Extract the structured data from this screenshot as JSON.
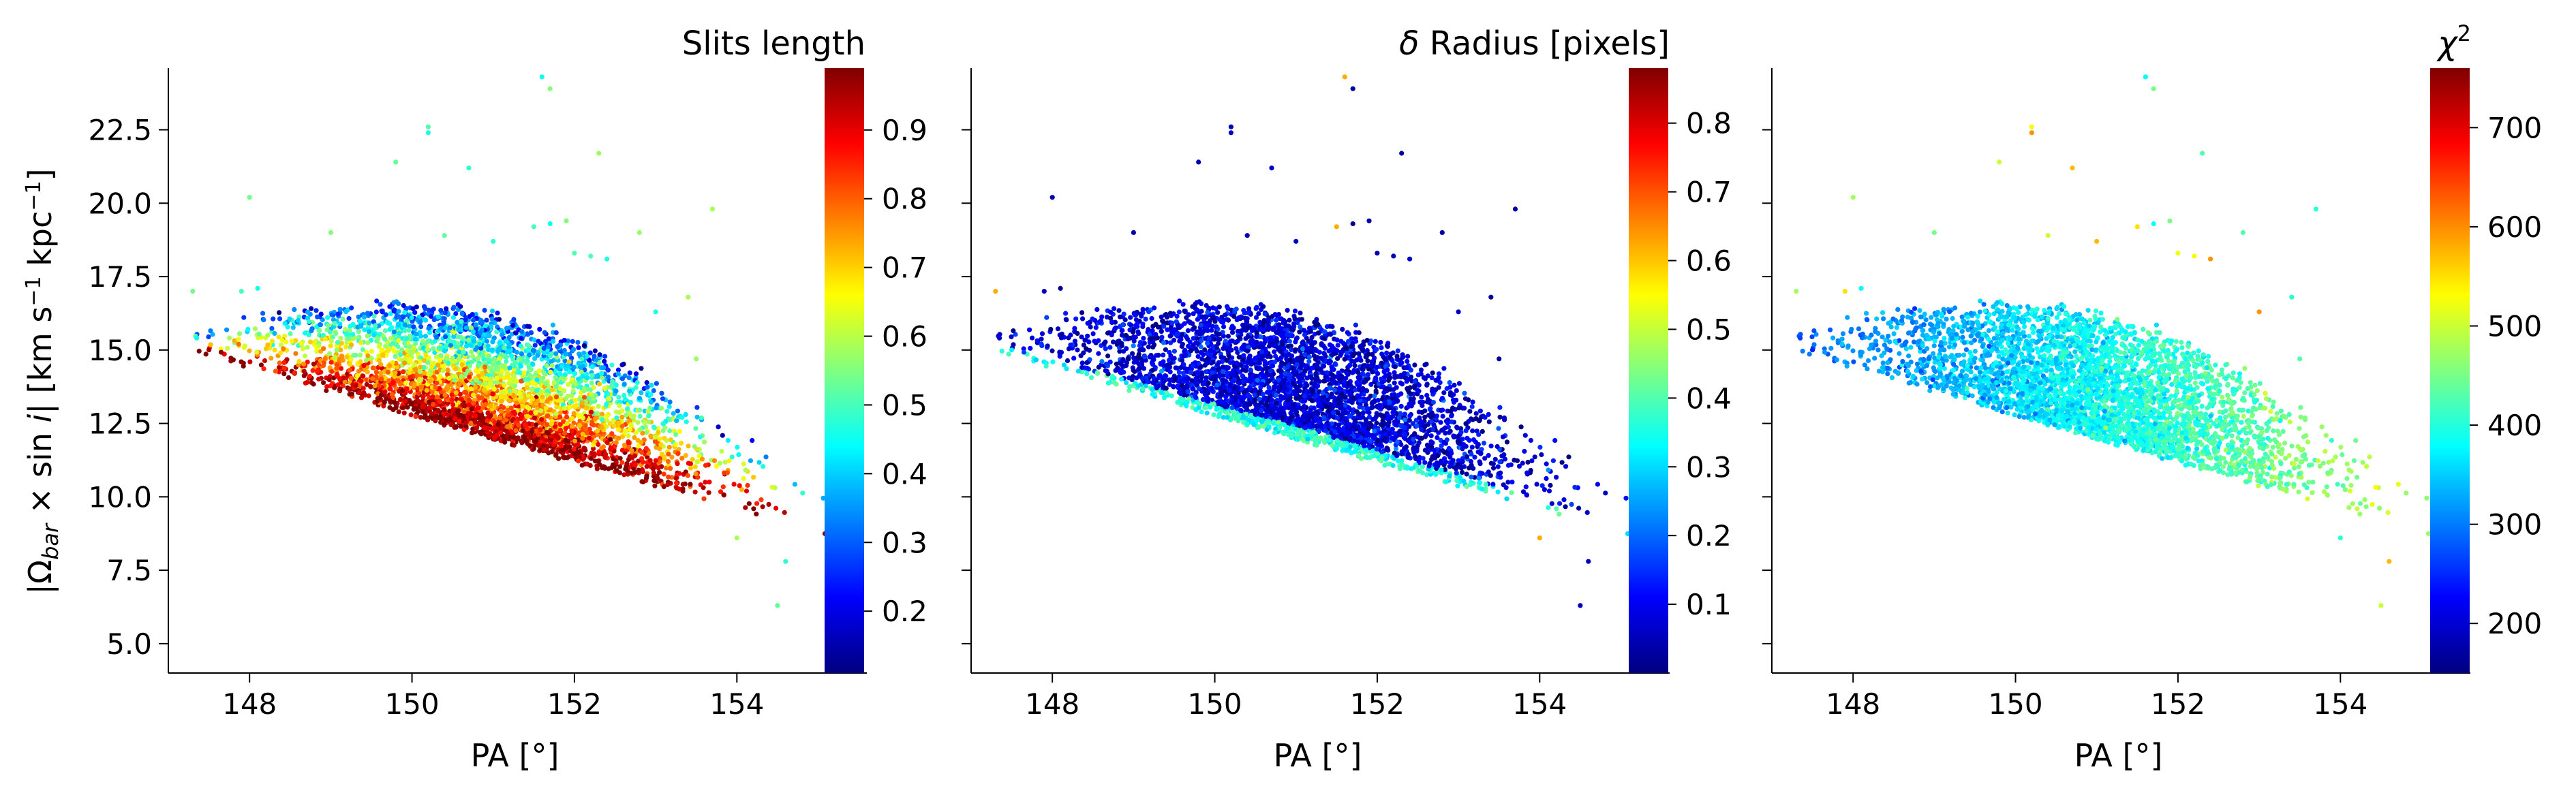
{
  "figure": {
    "ylabel_main": "|Ω",
    "ylabel_sub": "bar",
    "ylabel_mid": " × sin ",
    "ylabel_i": "i",
    "ylabel_units": "|   [km s",
    "ylabel_exp": "−1",
    "ylabel_units2": " kpc",
    "ylabel_exp2": "−1",
    "ylabel_end": "]"
  },
  "chart_data": [
    {
      "type": "scatter",
      "xlabel": "PA [°]",
      "xlim": [
        147.0,
        155.6
      ],
      "ylim": [
        4.0,
        24.6
      ],
      "xticks": [
        148,
        150,
        152,
        154
      ],
      "yticks": [
        5.0,
        7.5,
        10.0,
        12.5,
        15.0,
        17.5,
        20.0,
        22.5
      ],
      "colorbar": {
        "label": "Slits length",
        "range": [
          0.11,
          0.99
        ],
        "ticks": [
          0.2,
          0.3,
          0.4,
          0.5,
          0.6,
          0.7,
          0.8,
          0.9
        ],
        "tick_labels": [
          "0.2",
          "0.3",
          "0.4",
          "0.5",
          "0.6",
          "0.7",
          "0.8",
          "0.9"
        ],
        "colormap": "jet"
      },
      "color_trend": "high values (red) along the lower edge of the band, low values (green/cyan) toward the upper edge"
    },
    {
      "type": "scatter",
      "xlabel": "PA [°]",
      "xlim": [
        147.0,
        155.6
      ],
      "ylim": [
        4.0,
        24.6
      ],
      "xticks": [
        148,
        150,
        152,
        154
      ],
      "yticks": [
        5.0,
        7.5,
        10.0,
        12.5,
        15.0,
        17.5,
        20.0,
        22.5
      ],
      "colorbar": {
        "label_symbol": "δ",
        "label": " Radius [pixels]",
        "range": [
          0.0,
          0.88
        ],
        "ticks": [
          0.1,
          0.2,
          0.3,
          0.4,
          0.5,
          0.6,
          0.7,
          0.8
        ],
        "tick_labels": [
          "0.1",
          "0.2",
          "0.3",
          "0.4",
          "0.5",
          "0.6",
          "0.7",
          "0.8"
        ],
        "colormap": "jet"
      },
      "color_trend": "mostly low values (blue), higher values (cyan/green) along the lower edge"
    },
    {
      "type": "scatter",
      "xlabel": "PA [°]",
      "xlim": [
        147.0,
        155.6
      ],
      "ylim": [
        4.0,
        24.6
      ],
      "xticks": [
        148,
        150,
        152,
        154
      ],
      "yticks": [
        5.0,
        7.5,
        10.0,
        12.5,
        15.0,
        17.5,
        20.0,
        22.5
      ],
      "colorbar": {
        "label_symbol": "χ",
        "label_sup": "2",
        "label": "",
        "range": [
          150,
          760
        ],
        "ticks": [
          200,
          300,
          400,
          500,
          600,
          700
        ],
        "tick_labels": [
          "200",
          "300",
          "400",
          "500",
          "600",
          "700"
        ],
        "colormap": "jet"
      },
      "color_trend": "values increase from cyan (~330) at low PA to green (~480) at high PA"
    }
  ]
}
